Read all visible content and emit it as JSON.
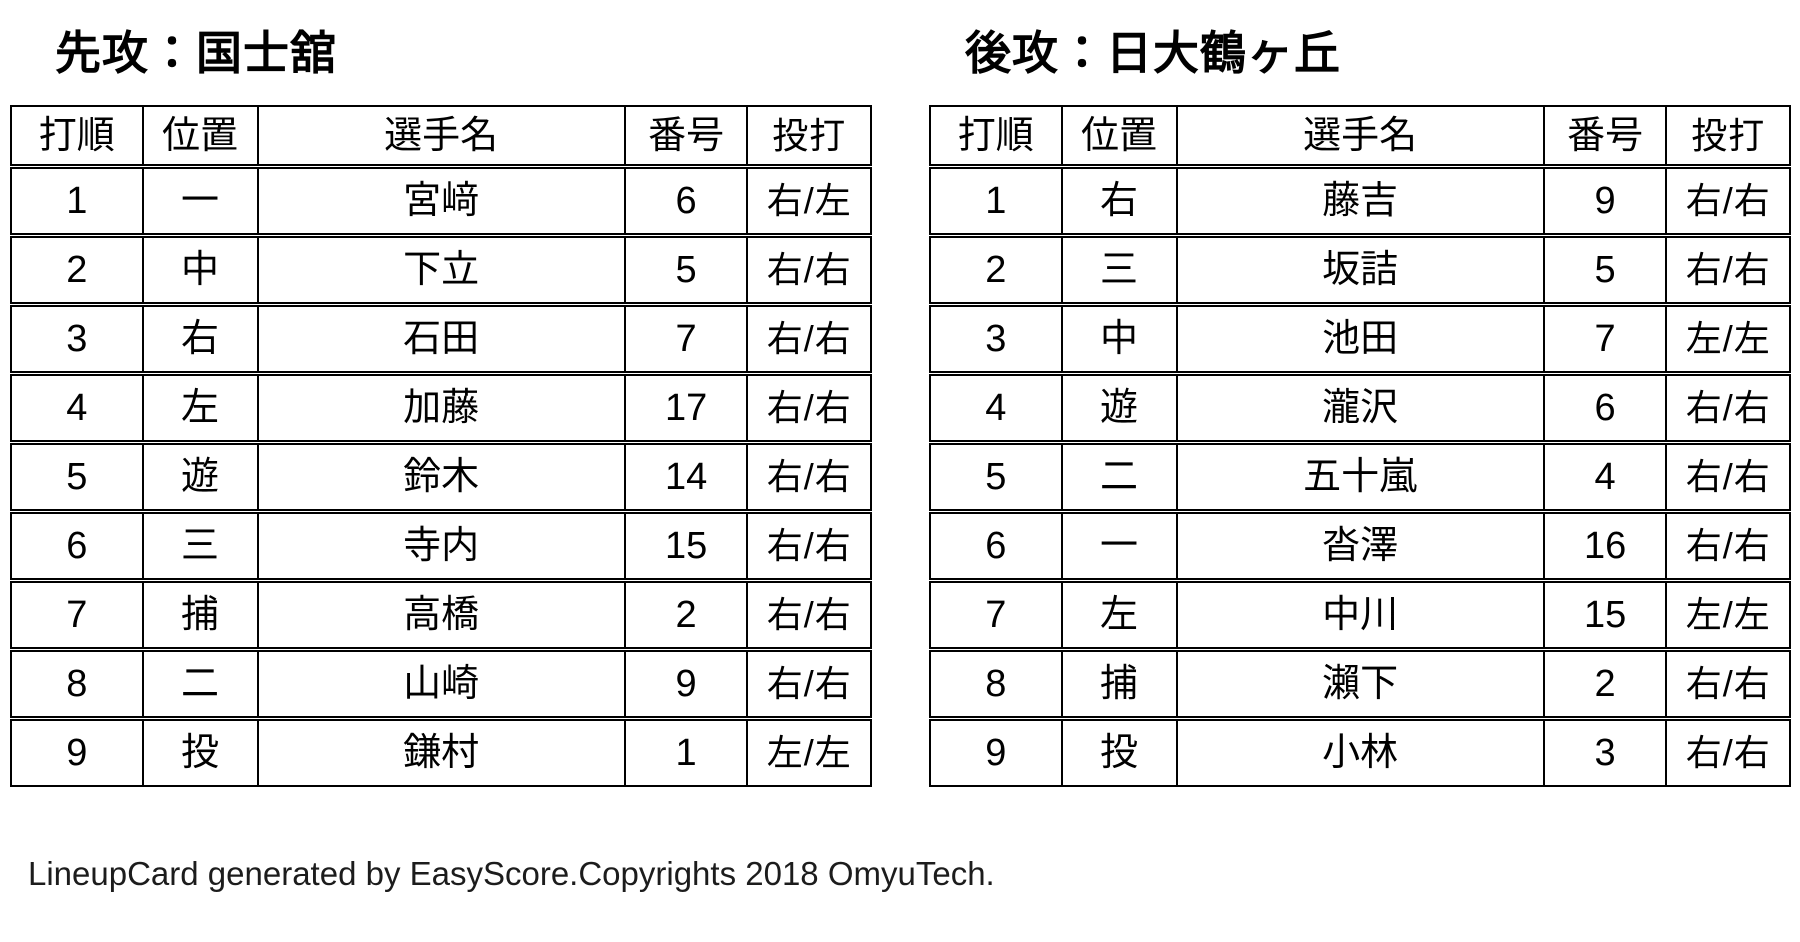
{
  "page": {
    "background_color": "#ffffff",
    "border_color": "#000000",
    "text_color": "#000000"
  },
  "tables": [
    {
      "title": "先攻：国士舘",
      "columns": [
        "打順",
        "位置",
        "選手名",
        "番号",
        "投打"
      ],
      "rows": [
        [
          "1",
          "一",
          "宮﨑",
          "6",
          "右/左"
        ],
        [
          "2",
          "中",
          "下立",
          "5",
          "右/右"
        ],
        [
          "3",
          "右",
          "石田",
          "7",
          "右/右"
        ],
        [
          "4",
          "左",
          "加藤",
          "17",
          "右/右"
        ],
        [
          "5",
          "遊",
          "鈴木",
          "14",
          "右/右"
        ],
        [
          "6",
          "三",
          "寺内",
          "15",
          "右/右"
        ],
        [
          "7",
          "捕",
          "高橋",
          "2",
          "右/右"
        ],
        [
          "8",
          "二",
          "山崎",
          "9",
          "右/右"
        ],
        [
          "9",
          "投",
          "鎌村",
          "1",
          "左/左"
        ]
      ]
    },
    {
      "title": "後攻：日大鶴ヶ丘",
      "columns": [
        "打順",
        "位置",
        "選手名",
        "番号",
        "投打"
      ],
      "rows": [
        [
          "1",
          "右",
          "藤吉",
          "9",
          "右/右"
        ],
        [
          "2",
          "三",
          "坂詰",
          "5",
          "右/右"
        ],
        [
          "3",
          "中",
          "池田",
          "7",
          "左/左"
        ],
        [
          "4",
          "遊",
          "瀧沢",
          "6",
          "右/右"
        ],
        [
          "5",
          "二",
          "五十嵐",
          "4",
          "右/右"
        ],
        [
          "6",
          "一",
          "沓澤",
          "16",
          "右/右"
        ],
        [
          "7",
          "左",
          "中川",
          "15",
          "左/左"
        ],
        [
          "8",
          "捕",
          "瀨下",
          "2",
          "右/右"
        ],
        [
          "9",
          "投",
          "小林",
          "3",
          "右/右"
        ]
      ]
    }
  ],
  "footer": {
    "text": "LineupCard generated by EasyScore.Copyrights 2018 OmyuTech."
  }
}
